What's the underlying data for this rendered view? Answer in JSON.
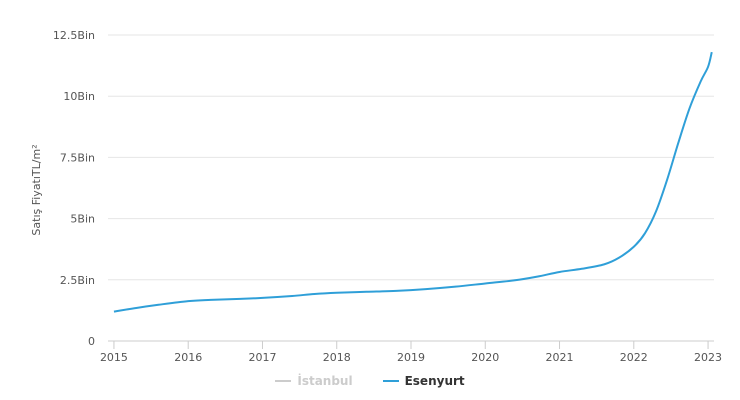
{
  "chart_data": {
    "type": "line",
    "title": "",
    "xlabel": "",
    "ylabel": "Satış FiyatıTL/m²",
    "x_ticks": [
      "2015",
      "2016",
      "2017",
      "2018",
      "2019",
      "2020",
      "2021",
      "2022",
      "2023"
    ],
    "y_ticks": [
      {
        "value": 0,
        "label": "0"
      },
      {
        "value": 2500,
        "label": "2.5Bin"
      },
      {
        "value": 5000,
        "label": "5Bin"
      },
      {
        "value": 7500,
        "label": "7.5Bin"
      },
      {
        "value": 10000,
        "label": "10Bin"
      },
      {
        "value": 12500,
        "label": "12.5Bin"
      }
    ],
    "xlim": [
      2014.92,
      2023.08
    ],
    "ylim": [
      0,
      12500
    ],
    "grid": true,
    "legend_position": "bottom-center",
    "series": [
      {
        "name": "İstanbul",
        "color": "#cccccc",
        "visible": false,
        "points": []
      },
      {
        "name": "Esenyurt",
        "color": "#2f9fd8",
        "visible": true,
        "points": [
          [
            2015.0,
            1200
          ],
          [
            2015.3,
            1350
          ],
          [
            2015.6,
            1480
          ],
          [
            2016.0,
            1630
          ],
          [
            2016.3,
            1680
          ],
          [
            2016.7,
            1720
          ],
          [
            2017.0,
            1760
          ],
          [
            2017.4,
            1840
          ],
          [
            2017.7,
            1920
          ],
          [
            2018.0,
            1970
          ],
          [
            2018.4,
            2010
          ],
          [
            2018.8,
            2050
          ],
          [
            2019.2,
            2120
          ],
          [
            2019.6,
            2220
          ],
          [
            2020.0,
            2350
          ],
          [
            2020.4,
            2480
          ],
          [
            2020.7,
            2630
          ],
          [
            2021.0,
            2820
          ],
          [
            2021.3,
            2950
          ],
          [
            2021.6,
            3130
          ],
          [
            2021.8,
            3400
          ],
          [
            2022.0,
            3850
          ],
          [
            2022.15,
            4400
          ],
          [
            2022.3,
            5300
          ],
          [
            2022.45,
            6600
          ],
          [
            2022.6,
            8100
          ],
          [
            2022.75,
            9500
          ],
          [
            2022.9,
            10600
          ],
          [
            2023.0,
            11200
          ],
          [
            2023.05,
            11800
          ]
        ]
      }
    ]
  }
}
